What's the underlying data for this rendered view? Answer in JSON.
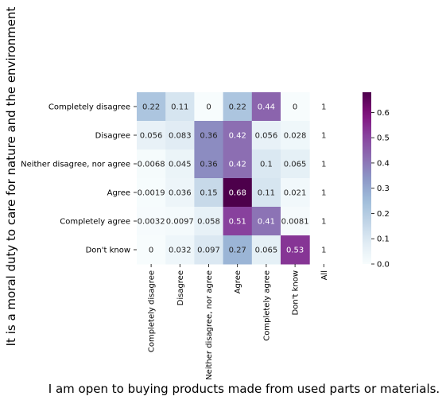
{
  "chart_data": {
    "type": "heatmap",
    "title": "",
    "xlabel": "I am open to buying products made from used parts or materials.",
    "ylabel": "It is a moral duty to care for nature and the environment",
    "x_categories": [
      "Completely disagree",
      "Disagree",
      "Neither disagree, nor agree",
      "Agree",
      "Completely agree",
      "Don't know",
      "All"
    ],
    "y_categories": [
      "Completely disagree",
      "Disagree",
      "Neither disagree, nor agree",
      "Agree",
      "Completely agree",
      "Don't know"
    ],
    "values": [
      [
        0.22,
        0.11,
        0,
        0.22,
        0.44,
        0
      ],
      [
        0.056,
        0.083,
        0.36,
        0.42,
        0.056,
        0.028
      ],
      [
        0.0068,
        0.045,
        0.36,
        0.42,
        0.1,
        0.065
      ],
      [
        0.0019,
        0.036,
        0.15,
        0.68,
        0.11,
        0.021
      ],
      [
        0.0032,
        0.0097,
        0.058,
        0.51,
        0.41,
        0.0081
      ],
      [
        0,
        0.032,
        0.097,
        0.27,
        0.065,
        0.53
      ]
    ],
    "labels": [
      [
        "0.22",
        "0.11",
        "0",
        "0.22",
        "0.44",
        "0"
      ],
      [
        "0.056",
        "0.083",
        "0.36",
        "0.42",
        "0.056",
        "0.028"
      ],
      [
        "0.0068",
        "0.045",
        "0.36",
        "0.42",
        "0.1",
        "0.065"
      ],
      [
        "0.0019",
        "0.036",
        "0.15",
        "0.68",
        "0.11",
        "0.021"
      ],
      [
        "0.0032",
        "0.0097",
        "0.058",
        "0.51",
        "0.41",
        "0.0081"
      ],
      [
        "0",
        "0.032",
        "0.097",
        "0.27",
        "0.065",
        "0.53"
      ]
    ],
    "all_column": [
      1,
      1,
      1,
      1,
      1,
      1
    ],
    "all_labels": [
      "1",
      "1",
      "1",
      "1",
      "1",
      "1"
    ],
    "colormap": "BuPu",
    "colorbar": {
      "vmin": 0,
      "vmax": 0.68,
      "ticks": [
        0.0,
        0.1,
        0.2,
        0.3,
        0.4,
        0.5,
        0.6
      ],
      "tick_labels": [
        "0.0",
        "0.1",
        "0.2",
        "0.3",
        "0.4",
        "0.5",
        "0.6"
      ]
    },
    "grid": false,
    "legend": "colorbar-right"
  }
}
